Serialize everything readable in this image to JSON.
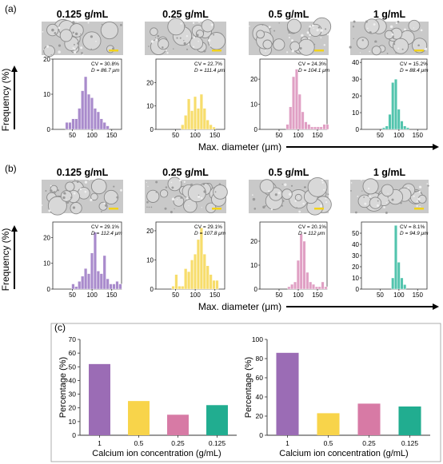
{
  "panels": {
    "a": {
      "label": "(a)",
      "ylabel": "Frequency (%)",
      "xlabel": "Max. diameter (μm)",
      "columns": [
        {
          "title": "0.125 g/mL",
          "cv": "CV = 30.8%",
          "d": "D = 86.7 μm",
          "yticks": [
            0,
            10,
            20
          ],
          "ymax": 20,
          "xticks": [
            50,
            100,
            150
          ],
          "xmin": 0,
          "xmax": 175,
          "bin_width": 8,
          "bins": [
            [
              32,
              2
            ],
            [
              40,
              2
            ],
            [
              48,
              3
            ],
            [
              56,
              3
            ],
            [
              64,
              6
            ],
            [
              72,
              11
            ],
            [
              80,
              15
            ],
            [
              88,
              10
            ],
            [
              96,
              9
            ],
            [
              104,
              6
            ],
            [
              112,
              5
            ],
            [
              120,
              3
            ],
            [
              128,
              2
            ],
            [
              136,
              1
            ]
          ]
        },
        {
          "title": "0.25 g/mL",
          "cv": "CV = 22.7%",
          "d": "D = 111.4 μm",
          "yticks": [
            0,
            10,
            20
          ],
          "ymax": 30,
          "xticks": [
            50,
            100,
            150
          ],
          "xmin": 0,
          "xmax": 175,
          "bin_width": 8,
          "bins": [
            [
              64,
              2
            ],
            [
              72,
              6
            ],
            [
              80,
              13
            ],
            [
              88,
              8
            ],
            [
              96,
              14
            ],
            [
              104,
              9
            ],
            [
              112,
              15
            ],
            [
              120,
              9
            ],
            [
              128,
              4
            ],
            [
              136,
              2
            ],
            [
              144,
              1
            ]
          ]
        },
        {
          "title": "0.5 g/mL",
          "cv": "CV = 24.3%",
          "d": "D = 104.1 μm",
          "yticks": [
            0,
            10,
            20
          ],
          "ymax": 28,
          "xticks": [
            50,
            100,
            150
          ],
          "xmin": 0,
          "xmax": 175,
          "bin_width": 8,
          "bins": [
            [
              68,
              2
            ],
            [
              76,
              9
            ],
            [
              84,
              21
            ],
            [
              92,
              24
            ],
            [
              100,
              14
            ],
            [
              108,
              7
            ],
            [
              116,
              3
            ],
            [
              124,
              2
            ],
            [
              132,
              1
            ],
            [
              140,
              1
            ],
            [
              148,
              1
            ],
            [
              156,
              1
            ],
            [
              164,
              2
            ],
            [
              172,
              2
            ]
          ]
        },
        {
          "title": "1 g/mL",
          "cv": "CV = 15.2%",
          "d": "D = 88.4 μm",
          "yticks": [
            0,
            10,
            20,
            30,
            40
          ],
          "ymax": 42,
          "xticks": [
            50,
            100,
            150
          ],
          "xmin": 0,
          "xmax": 175,
          "bin_width": 8,
          "bins": [
            [
              56,
              1
            ],
            [
              64,
              2
            ],
            [
              72,
              9
            ],
            [
              80,
              28
            ],
            [
              88,
              30
            ],
            [
              96,
              12
            ],
            [
              104,
              5
            ],
            [
              112,
              2
            ],
            [
              120,
              1
            ]
          ]
        }
      ]
    },
    "b": {
      "label": "(b)",
      "ylabel": "Frequency (%)",
      "xlabel": "Max. diameter (μm)",
      "columns": [
        {
          "title": "0.125 g/mL",
          "cv": "CV = 29.1%",
          "d": "D = 112.4 μm",
          "yticks": [
            0,
            10,
            20
          ],
          "ymax": 26,
          "xticks": [
            50,
            100,
            150
          ],
          "xmin": 0,
          "xmax": 175,
          "bin_width": 8,
          "bins": [
            [
              48,
              2
            ],
            [
              56,
              1
            ],
            [
              64,
              3
            ],
            [
              72,
              5
            ],
            [
              80,
              8
            ],
            [
              88,
              6
            ],
            [
              96,
              14
            ],
            [
              104,
              22
            ],
            [
              112,
              7
            ],
            [
              120,
              6
            ],
            [
              128,
              13
            ],
            [
              136,
              4
            ],
            [
              144,
              2
            ],
            [
              152,
              2
            ],
            [
              160,
              3
            ],
            [
              168,
              2
            ]
          ]
        },
        {
          "title": "0.25 g/mL",
          "cv": "CV = 29.1%",
          "d": "D = 107.8 μm",
          "yticks": [
            0,
            10,
            20
          ],
          "ymax": 23,
          "xticks": [
            50,
            100,
            150
          ],
          "xmin": 0,
          "xmax": 175,
          "bin_width": 8,
          "bins": [
            [
              40,
              1
            ],
            [
              48,
              5
            ],
            [
              56,
              1
            ],
            [
              64,
              1
            ],
            [
              72,
              7
            ],
            [
              80,
              6
            ],
            [
              88,
              10
            ],
            [
              96,
              12
            ],
            [
              104,
              17
            ],
            [
              112,
              21
            ],
            [
              120,
              12
            ],
            [
              128,
              8
            ],
            [
              136,
              5
            ],
            [
              144,
              3
            ],
            [
              152,
              3
            ]
          ]
        },
        {
          "title": "0.5 g/mL",
          "cv": "CV = 20.1%",
          "d": "D = 112 μm",
          "yticks": [
            0,
            10,
            20
          ],
          "ymax": 28,
          "xticks": [
            50,
            100,
            150
          ],
          "xmin": 0,
          "xmax": 175,
          "bin_width": 8,
          "bins": [
            [
              72,
              1
            ],
            [
              80,
              2
            ],
            [
              88,
              3
            ],
            [
              96,
              12
            ],
            [
              104,
              23
            ],
            [
              112,
              20
            ],
            [
              120,
              7
            ],
            [
              128,
              3
            ],
            [
              136,
              2
            ],
            [
              144,
              1
            ],
            [
              152,
              1
            ],
            [
              160,
              3
            ],
            [
              168,
              1
            ]
          ]
        },
        {
          "title": "1 g/mL",
          "cv": "CV = 8.1%",
          "d": "D = 94.9 μm",
          "yticks": [
            0,
            10,
            20,
            30,
            40,
            50
          ],
          "ymax": 60,
          "xticks": [
            50,
            100,
            150
          ],
          "xmin": 0,
          "xmax": 175,
          "bin_width": 8,
          "bins": [
            [
              80,
              10
            ],
            [
              88,
              57
            ],
            [
              96,
              24
            ],
            [
              104,
              10
            ],
            [
              112,
              4
            ]
          ]
        }
      ]
    },
    "c": {
      "label": "(c)",
      "charts": [
        {
          "categories": [
            "1",
            "0.5",
            "0.25",
            "0.125"
          ],
          "values": [
            52,
            25,
            15,
            22
          ],
          "ylim": [
            0,
            70
          ],
          "yticks": [
            0,
            10,
            20,
            30,
            40,
            50,
            60,
            70
          ],
          "ylabel": "Percentage (%)",
          "xlabel": "Calcium ion concentration (g/mL)"
        },
        {
          "categories": [
            "1",
            "0.5",
            "0.25",
            "0.125"
          ],
          "values": [
            86,
            23,
            33,
            30
          ],
          "ylim": [
            0,
            100
          ],
          "yticks": [
            0,
            20,
            40,
            60,
            80,
            100
          ],
          "ylabel": "Percentage (%)",
          "xlabel": "Calcium ion concentration (g/mL)"
        }
      ]
    }
  },
  "chart_data": [
    {
      "type": "bar",
      "panel": "a",
      "subplot": "0.125 g/mL",
      "x": [
        32,
        40,
        48,
        56,
        64,
        72,
        80,
        88,
        96,
        104,
        112,
        120,
        128,
        136
      ],
      "values": [
        2,
        2,
        3,
        3,
        6,
        11,
        15,
        10,
        9,
        6,
        5,
        3,
        2,
        1
      ],
      "xlabel": "Max. diameter (μm)",
      "ylabel": "Frequency (%)"
    },
    {
      "type": "bar",
      "panel": "a",
      "subplot": "0.25 g/mL",
      "x": [
        64,
        72,
        80,
        88,
        96,
        104,
        112,
        120,
        128,
        136,
        144
      ],
      "values": [
        2,
        6,
        13,
        8,
        14,
        9,
        15,
        9,
        4,
        2,
        1
      ]
    },
    {
      "type": "bar",
      "panel": "a",
      "subplot": "0.5 g/mL",
      "x": [
        68,
        76,
        84,
        92,
        100,
        108,
        116,
        124,
        132,
        140,
        148,
        156,
        164,
        172
      ],
      "values": [
        2,
        9,
        21,
        24,
        14,
        7,
        3,
        2,
        1,
        1,
        1,
        1,
        2,
        2
      ]
    },
    {
      "type": "bar",
      "panel": "a",
      "subplot": "1 g/mL",
      "x": [
        56,
        64,
        72,
        80,
        88,
        96,
        104,
        112,
        120
      ],
      "values": [
        1,
        2,
        9,
        28,
        30,
        12,
        5,
        2,
        1
      ]
    },
    {
      "type": "bar",
      "panel": "b",
      "subplot": "0.125 g/mL",
      "x": [
        48,
        56,
        64,
        72,
        80,
        88,
        96,
        104,
        112,
        120,
        128,
        136,
        144,
        152,
        160,
        168
      ],
      "values": [
        2,
        1,
        3,
        5,
        8,
        6,
        14,
        22,
        7,
        6,
        13,
        4,
        2,
        2,
        3,
        2
      ]
    },
    {
      "type": "bar",
      "panel": "b",
      "subplot": "0.25 g/mL",
      "x": [
        40,
        48,
        56,
        64,
        72,
        80,
        88,
        96,
        104,
        112,
        120,
        128,
        136,
        144,
        152
      ],
      "values": [
        1,
        5,
        1,
        1,
        7,
        6,
        10,
        12,
        17,
        21,
        12,
        8,
        5,
        3,
        3
      ]
    },
    {
      "type": "bar",
      "panel": "b",
      "subplot": "0.5 g/mL",
      "x": [
        72,
        80,
        88,
        96,
        104,
        112,
        120,
        128,
        136,
        144,
        152,
        160,
        168
      ],
      "values": [
        1,
        2,
        3,
        12,
        23,
        20,
        7,
        3,
        2,
        1,
        1,
        3,
        1
      ]
    },
    {
      "type": "bar",
      "panel": "b",
      "subplot": "1 g/mL",
      "x": [
        80,
        88,
        96,
        104,
        112
      ],
      "values": [
        10,
        57,
        24,
        10,
        4
      ]
    },
    {
      "type": "bar",
      "panel": "c",
      "categories": [
        "1",
        "0.5",
        "0.25",
        "0.125"
      ],
      "values": [
        52,
        25,
        15,
        22
      ],
      "ylim": [
        0,
        70
      ],
      "xlabel": "Calcium ion concentration (g/mL)",
      "ylabel": "Percentage (%)"
    },
    {
      "type": "bar",
      "panel": "c",
      "categories": [
        "1",
        "0.5",
        "0.25",
        "0.125"
      ],
      "values": [
        86,
        23,
        33,
        30
      ],
      "ylim": [
        0,
        100
      ],
      "xlabel": "Calcium ion concentration (g/mL)",
      "ylabel": "Percentage (%)"
    }
  ],
  "colors": {
    "purple": "#a98bcc",
    "yellow": "#f7dd6c",
    "pink": "#e0a0c4",
    "teal": "#52c4ad",
    "purple_solid": "#9b6cb5",
    "yellow_solid": "#f8d44a",
    "pink_solid": "#d77aa5",
    "teal_solid": "#21ad90"
  }
}
